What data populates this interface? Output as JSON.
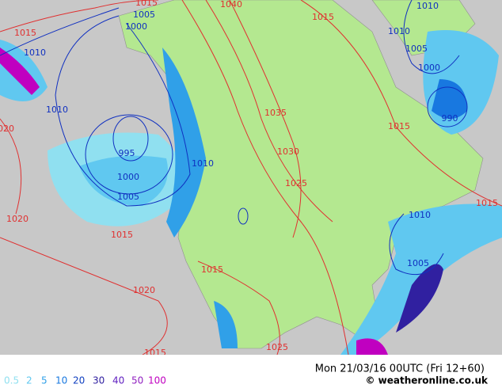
{
  "isobar_labels": [
    {
      "label": "1015",
      "color": "#e03030"
    },
    {
      "label": "1040",
      "color": "#e03030"
    },
    {
      "label": "1015",
      "color": "#e03030"
    },
    {
      "label": "1015",
      "color": "#e03030"
    },
    {
      "label": "1020",
      "color": "#e03030"
    },
    {
      "label": "1035",
      "color": "#e03030"
    },
    {
      "label": "1030",
      "color": "#e03030"
    },
    {
      "label": "1025",
      "color": "#e03030"
    },
    {
      "label": "1015",
      "color": "#e03030"
    },
    {
      "label": "1020",
      "color": "#e03030"
    },
    {
      "label": "1015",
      "color": "#e03030"
    },
    {
      "label": "1015",
      "color": "#e03030"
    },
    {
      "label": "1020",
      "color": "#e03030"
    },
    {
      "label": "1015",
      "color": "#e03030"
    },
    {
      "label": "1025",
      "color": "#e03030"
    },
    {
      "label": "1015",
      "color": "#e03030"
    },
    {
      "label": "1005",
      "color": "#1030c0"
    },
    {
      "label": "1000",
      "color": "#1030c0"
    },
    {
      "label": "1010",
      "color": "#1030c0"
    },
    {
      "label": "1010",
      "color": "#1030c0"
    },
    {
      "label": "995",
      "color": "#1030c0"
    },
    {
      "label": "1000",
      "color": "#1030c0"
    },
    {
      "label": "1005",
      "color": "#1030c0"
    },
    {
      "label": "1010",
      "color": "#1030c0"
    },
    {
      "label": "1010",
      "color": "#1030c0"
    },
    {
      "label": "1010",
      "color": "#1030c0"
    },
    {
      "label": "1005",
      "color": "#1030c0"
    },
    {
      "label": "1000",
      "color": "#1030c0"
    },
    {
      "label": "990",
      "color": "#1030c0"
    },
    {
      "label": "1010",
      "color": "#1030c0"
    },
    {
      "label": "1005",
      "color": "#1030c0"
    }
  ],
  "legend": [
    {
      "label": "0.5",
      "color": "#90e0f0"
    },
    {
      "label": "2",
      "color": "#60c8f0"
    },
    {
      "label": "5",
      "color": "#30a0e8"
    },
    {
      "label": "10",
      "color": "#1878e0"
    },
    {
      "label": "20",
      "color": "#1040c0"
    },
    {
      "label": "30",
      "color": "#3020a0"
    },
    {
      "label": "40",
      "color": "#6020c0"
    },
    {
      "label": "50",
      "color": "#9020c0"
    },
    {
      "label": "100",
      "color": "#c000c0"
    }
  ],
  "footer": {
    "datetime": "Mon 21/03/16 00UTC  (Fri 12+60)",
    "copyright": "© weatheronline.co.uk"
  }
}
